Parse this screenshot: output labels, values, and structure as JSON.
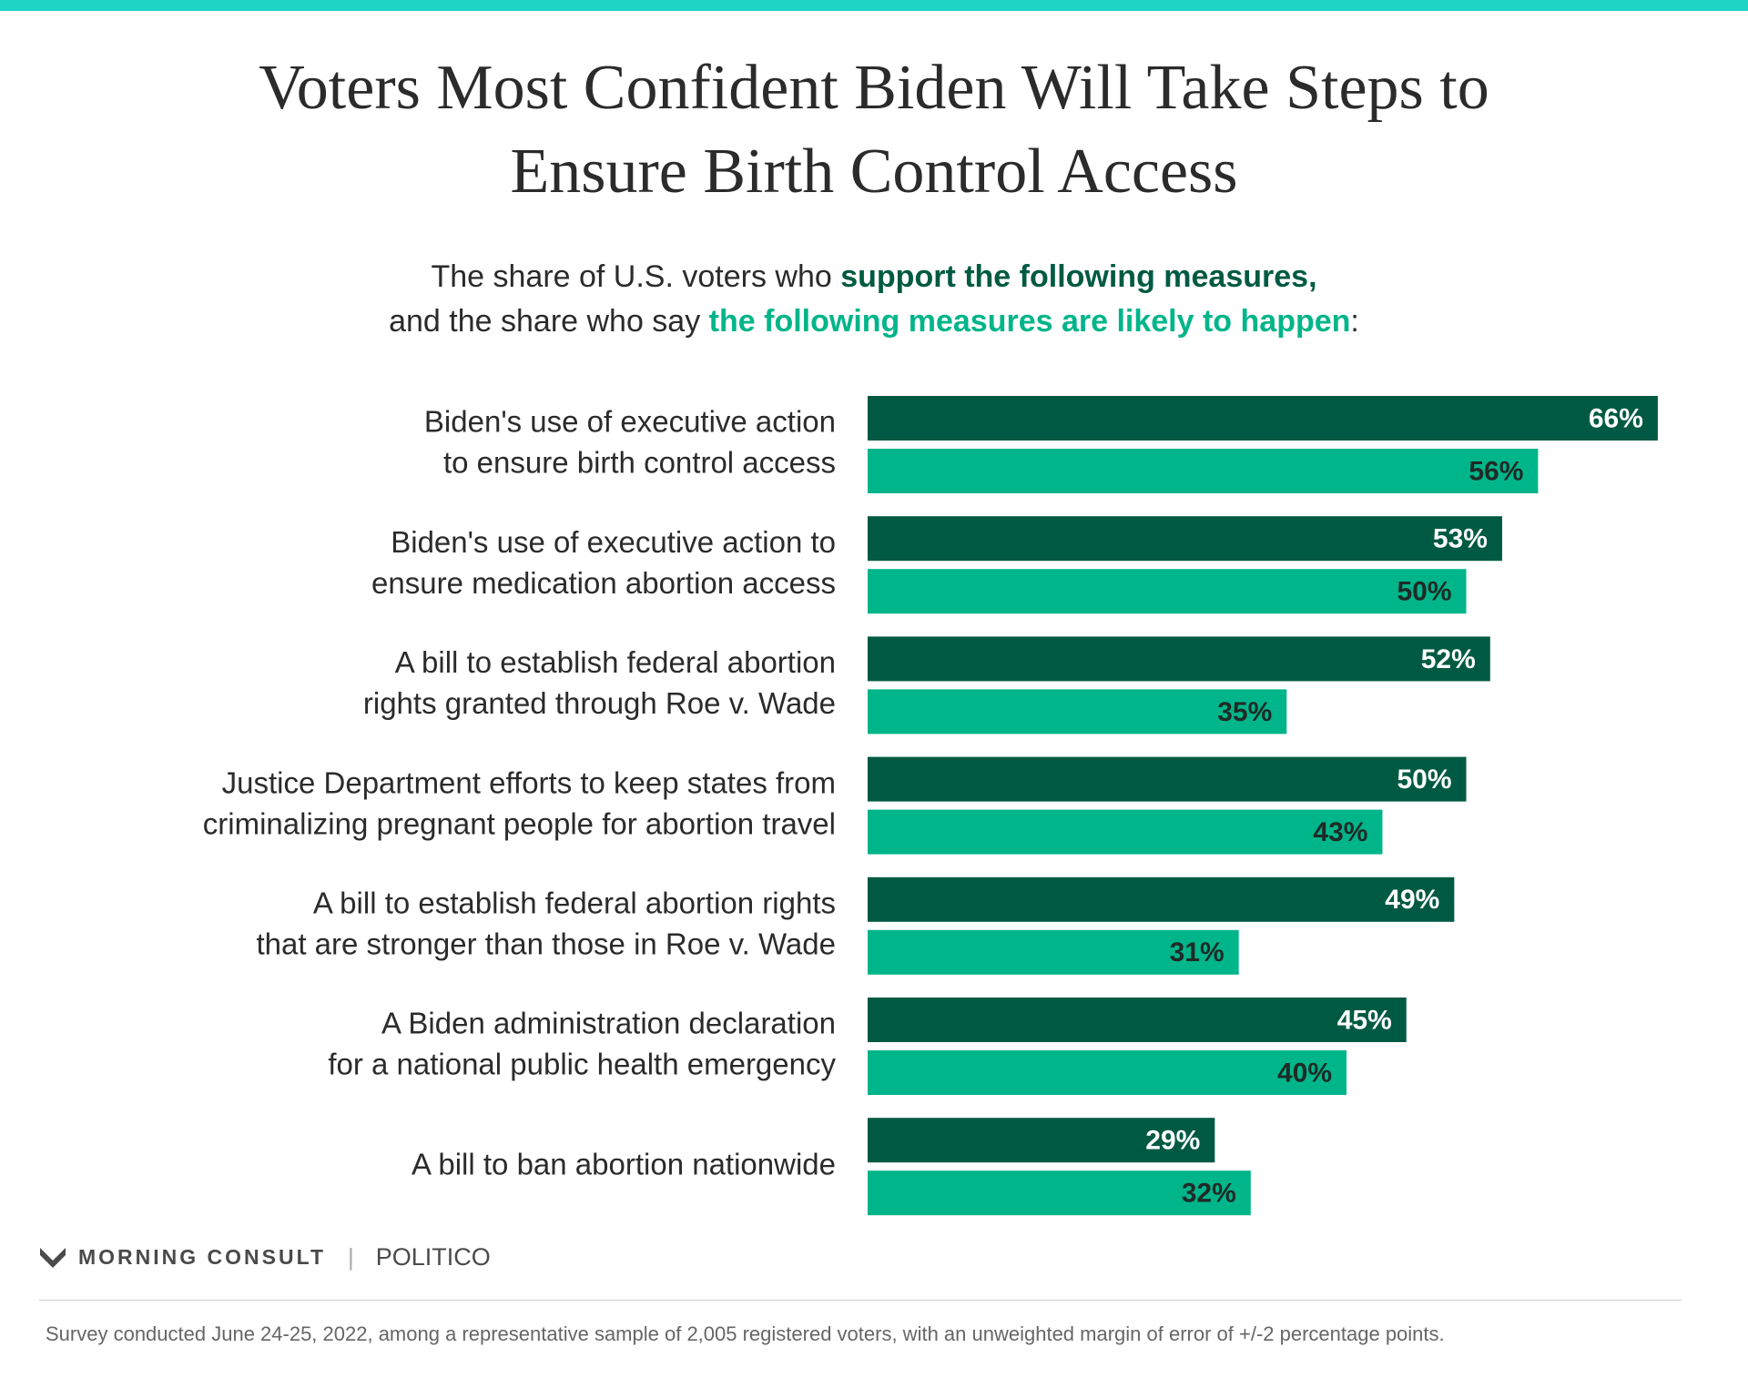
{
  "chart_data": {
    "type": "hbar",
    "title": [
      "Voters Most Confident Biden Will Take Steps to",
      "Ensure Birth Control Access"
    ],
    "subtitle": {
      "line1_prefix": "The share of U.S. voters who",
      "line1_suffix": ",",
      "line2_prefix": "and the share who say",
      "line2_suffix": ":"
    },
    "categories": [
      [
        "Biden's use of executive action",
        "to ensure birth control access"
      ],
      [
        "Biden's use of executive action to",
        "ensure medication abortion access"
      ],
      [
        "A bill to establish federal abortion",
        "rights granted through Roe v. Wade"
      ],
      [
        "Justice Department efforts to keep states from",
        "criminalizing pregnant people for abortion travel"
      ],
      [
        "A bill to establish federal abortion rights",
        "that are stronger than those in Roe v. Wade"
      ],
      [
        "A Biden administration declaration",
        "for a national public health emergency"
      ],
      [
        "A bill to ban abortion nationwide"
      ]
    ],
    "series": [
      {
        "name": "support the following measures",
        "color": "#005a43",
        "label_color": "#ffffff",
        "values": [
          66,
          53,
          52,
          50,
          49,
          45,
          29
        ],
        "value_labels": [
          "66%",
          "53%",
          "52%",
          "50%",
          "49%",
          "45%",
          "29%"
        ]
      },
      {
        "name": "the following measures are likely to happen",
        "color": "#00b58a",
        "label_color": "#1f2a26",
        "values": [
          56,
          50,
          35,
          43,
          31,
          40,
          32
        ],
        "value_labels": [
          "56%",
          "50%",
          "35%",
          "43%",
          "31%",
          "40%",
          "32%"
        ]
      }
    ],
    "source_logos": [
      "MORNING CONSULT",
      "POLITICO"
    ],
    "note": "Survey conducted June 24-25, 2022, among a representative sample of 2,005 registered voters, with an unweighted margin of error of +/-2 percentage points."
  }
}
